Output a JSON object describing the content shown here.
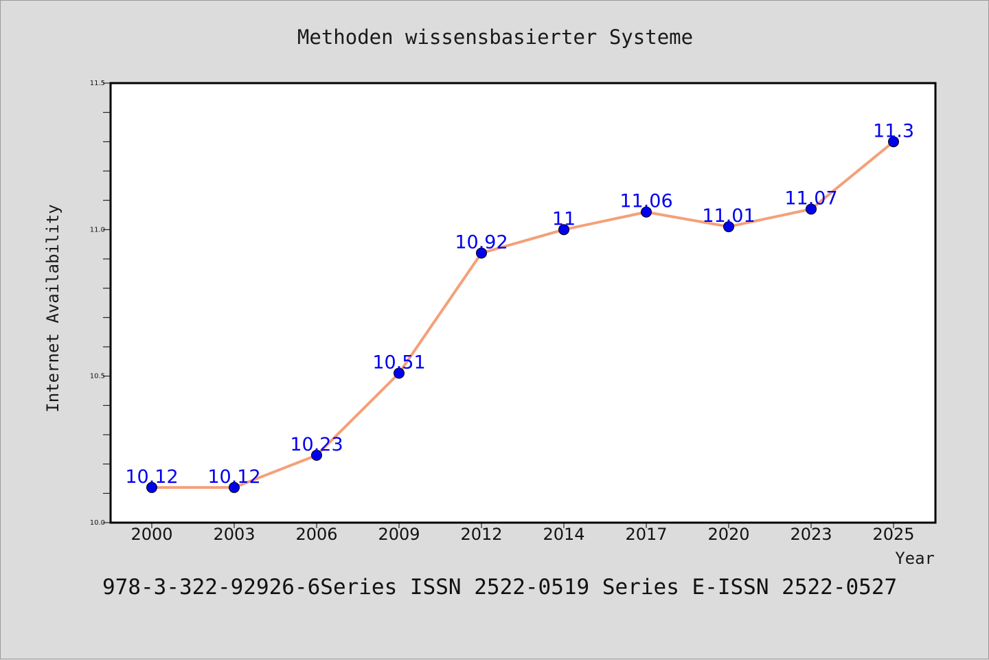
{
  "chart_data": {
    "type": "line",
    "title": "Methoden wissensbasierter Systeme",
    "xlabel": "Year",
    "ylabel": "Internet Availability",
    "categories": [
      "2000",
      "2003",
      "2006",
      "2009",
      "2012",
      "2014",
      "2017",
      "2020",
      "2023",
      "2025"
    ],
    "series": [
      {
        "values": [
          10.12,
          10.12,
          10.23,
          10.51,
          10.92,
          11,
          11.06,
          11.01,
          11.07,
          11.3
        ],
        "data_labels": [
          "10.12",
          "10.12",
          "10.23",
          "10.51",
          "10.92",
          "11",
          "11.06",
          "11.01",
          "11.07",
          "11.3"
        ],
        "line_color": "#f4a07a",
        "marker_color": "#0000ee"
      }
    ],
    "ylim": [
      10.0,
      11.5
    ],
    "yticks": [
      "10.0",
      "10.5",
      "11.0",
      "11.5"
    ],
    "grid": false,
    "legend": "none"
  },
  "footer": {
    "text": "978-3-322-92926-6Series ISSN 2522-0519 Series E-ISSN 2522-0527"
  },
  "colors": {
    "background": "#dcdcdc",
    "plot_background": "#ffffff",
    "line": "#f4a07a",
    "marker": "#0000ee",
    "data_label": "#0000ee"
  }
}
